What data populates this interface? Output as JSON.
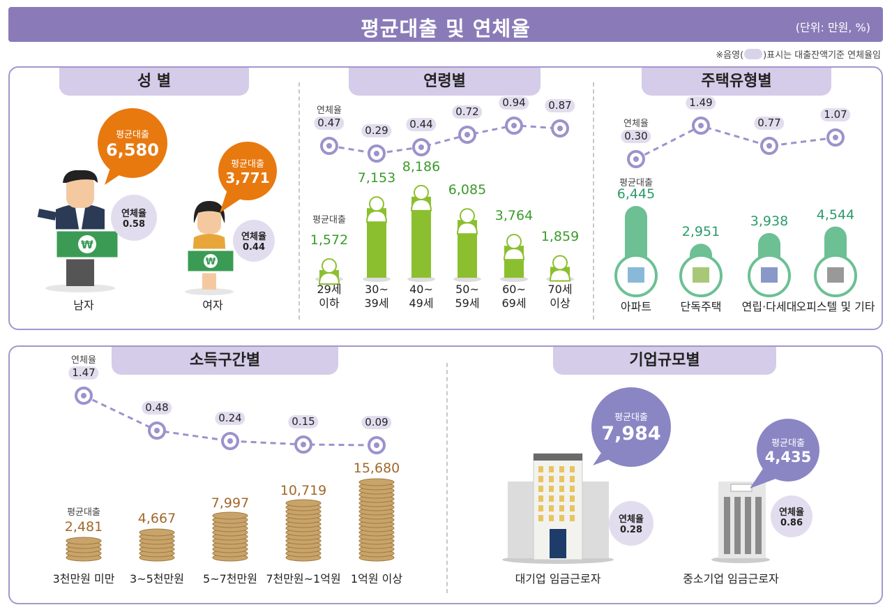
{
  "header": {
    "title": "평균대출 및 연체율",
    "unit": "(단위: 만원, %)",
    "note_prefix": "※음영(",
    "note_suffix": ")표시는 대출잔액기준 연체율임"
  },
  "labels": {
    "loan": "평균대출",
    "rate": "연체율"
  },
  "colors": {
    "title_bar": "#8a7bb8",
    "tab": "#d4cce8",
    "rate_marker": "#9c92cc",
    "gender_bubble": "#e8790f",
    "age_bar": "#8cbf2f",
    "housing_bar": "#6cc093",
    "coin": "#c9a46a",
    "company_bubble": "#8a86c4"
  },
  "sections": {
    "gender": {
      "title": "성 별"
    },
    "age": {
      "title": "연령별"
    },
    "housing": {
      "title": "주택유형별"
    },
    "income": {
      "title": "소득구간별"
    },
    "company": {
      "title": "기업규모별"
    }
  },
  "chart_data": [
    {
      "type": "bar",
      "id": "gender",
      "title": "성 별",
      "categories": [
        "남자",
        "여자"
      ],
      "series": [
        {
          "name": "평균대출",
          "values": [
            6580,
            3771
          ]
        },
        {
          "name": "연체율",
          "values": [
            0.58,
            0.44
          ]
        }
      ],
      "display": {
        "loan": [
          "6,580",
          "3,771"
        ],
        "rate": [
          "0.58",
          "0.44"
        ]
      }
    },
    {
      "type": "bar",
      "id": "age",
      "title": "연령별",
      "categories": [
        "29세\n이하",
        "30~\n39세",
        "40~\n49세",
        "50~\n59세",
        "60~\n69세",
        "70세\n이상"
      ],
      "series": [
        {
          "name": "평균대출",
          "values": [
            1572,
            7153,
            8186,
            6085,
            3764,
            1859
          ]
        },
        {
          "name": "연체율",
          "values": [
            0.47,
            0.29,
            0.44,
            0.72,
            0.94,
            0.87
          ]
        }
      ],
      "display": {
        "loan": [
          "1,572",
          "7,153",
          "8,186",
          "6,085",
          "3,764",
          "1,859"
        ],
        "rate": [
          "0.47",
          "0.29",
          "0.44",
          "0.72",
          "0.94",
          "0.87"
        ]
      }
    },
    {
      "type": "bar",
      "id": "housing",
      "title": "주택유형별",
      "categories": [
        "아파트",
        "단독주택",
        "연립·다세대",
        "오피스텔 및 기타"
      ],
      "series": [
        {
          "name": "평균대출",
          "values": [
            6445,
            2951,
            3938,
            4544
          ]
        },
        {
          "name": "연체율",
          "values": [
            0.3,
            1.49,
            0.77,
            1.07
          ]
        }
      ],
      "display": {
        "loan": [
          "6,445",
          "2,951",
          "3,938",
          "4,544"
        ],
        "rate": [
          "0.30",
          "1.49",
          "0.77",
          "1.07"
        ]
      }
    },
    {
      "type": "bar",
      "id": "income",
      "title": "소득구간별",
      "categories": [
        "3천만원 미만",
        "3~5천만원",
        "5~7천만원",
        "7천만원~1억원",
        "1억원 이상"
      ],
      "series": [
        {
          "name": "평균대출",
          "values": [
            2481,
            4667,
            7997,
            10719,
            15680
          ]
        },
        {
          "name": "연체율",
          "values": [
            1.47,
            0.48,
            0.24,
            0.15,
            0.09
          ]
        }
      ],
      "display": {
        "loan": [
          "2,481",
          "4,667",
          "7,997",
          "10,719",
          "15,680"
        ],
        "rate": [
          "1.47",
          "0.48",
          "0.24",
          "0.15",
          "0.09"
        ]
      }
    },
    {
      "type": "bar",
      "id": "company",
      "title": "기업규모별",
      "categories": [
        "대기업 임금근로자",
        "중소기업 임금근로자"
      ],
      "series": [
        {
          "name": "평균대출",
          "values": [
            7984,
            4435
          ]
        },
        {
          "name": "연체율",
          "values": [
            0.28,
            0.86
          ]
        }
      ],
      "display": {
        "loan": [
          "7,984",
          "4,435"
        ],
        "rate": [
          "0.28",
          "0.86"
        ]
      }
    }
  ]
}
